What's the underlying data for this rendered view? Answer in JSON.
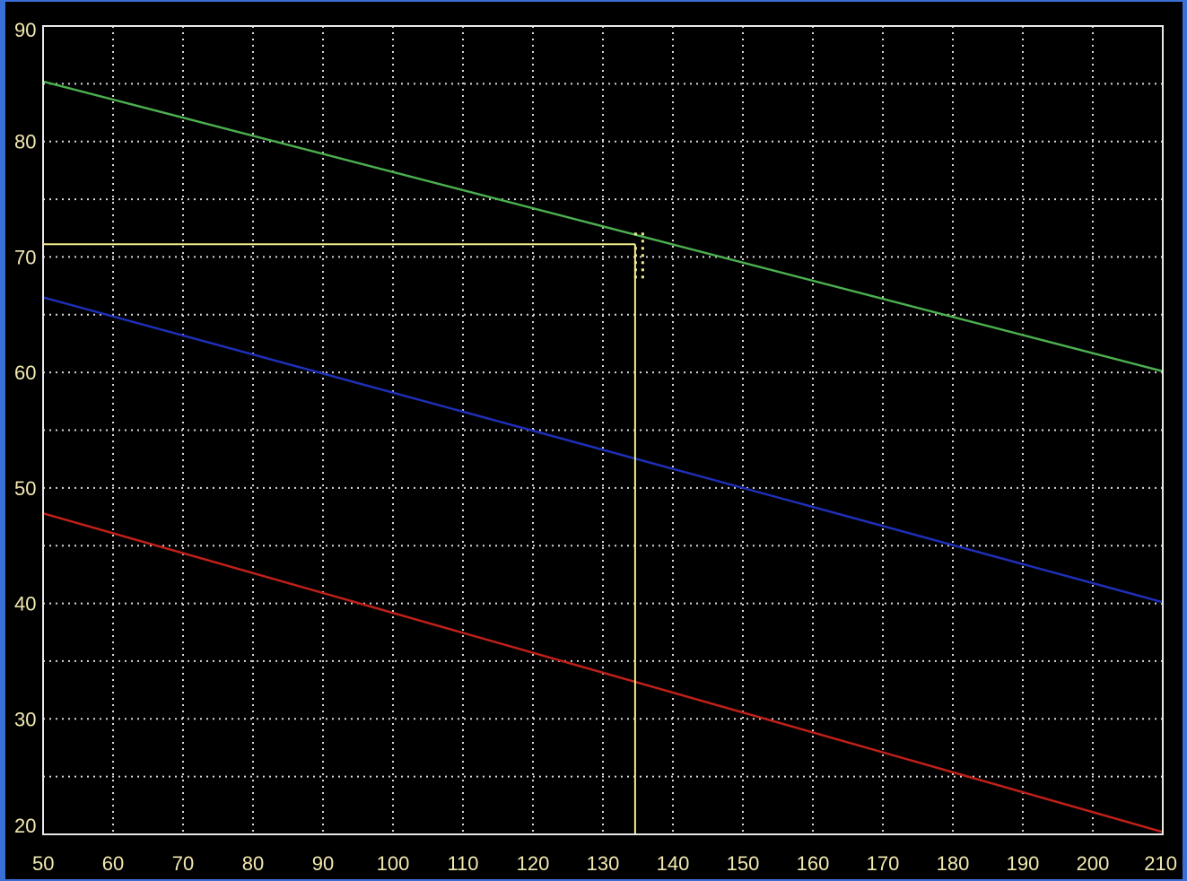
{
  "chart_data": {
    "type": "line",
    "title": "",
    "xlabel": "",
    "ylabel": "",
    "xlim": [
      50,
      210
    ],
    "ylim": [
      20,
      90
    ],
    "x_ticks": [
      50,
      60,
      70,
      80,
      90,
      100,
      110,
      120,
      130,
      140,
      150,
      160,
      170,
      180,
      190,
      200,
      210
    ],
    "y_ticks": [
      20,
      30,
      40,
      50,
      60,
      70,
      80,
      90
    ],
    "x_tick_labels": [
      "50",
      "60",
      "70",
      "80",
      "90",
      "100",
      "110",
      "120",
      "130",
      "140",
      "150",
      "160",
      "170",
      "180",
      "190",
      "200",
      "210"
    ],
    "y_tick_labels": [
      "20",
      "30",
      "40",
      "50",
      "60",
      "70",
      "80",
      "90"
    ],
    "grid": true,
    "grid_style": "dotted",
    "legend": "none",
    "series": [
      {
        "color": "#4caf50",
        "x": [
          50,
          210
        ],
        "y": [
          85.2,
          60.1
        ]
      },
      {
        "color": "#1f2fb8",
        "x": [
          50,
          210
        ],
        "y": [
          66.5,
          40.1
        ]
      },
      {
        "color": "#c0201a",
        "x": [
          50,
          210
        ],
        "y": [
          47.8,
          20.2
        ]
      }
    ],
    "cursor": {
      "color": "#f3ec8a",
      "x": 134.6,
      "y": 71.1
    },
    "colors": {
      "background": "#000000",
      "plot_border": "#e8e8e8",
      "grid": "#d8d8d8",
      "tick_text": "#f2e9b0",
      "window_border": "#3a6fd8"
    }
  }
}
